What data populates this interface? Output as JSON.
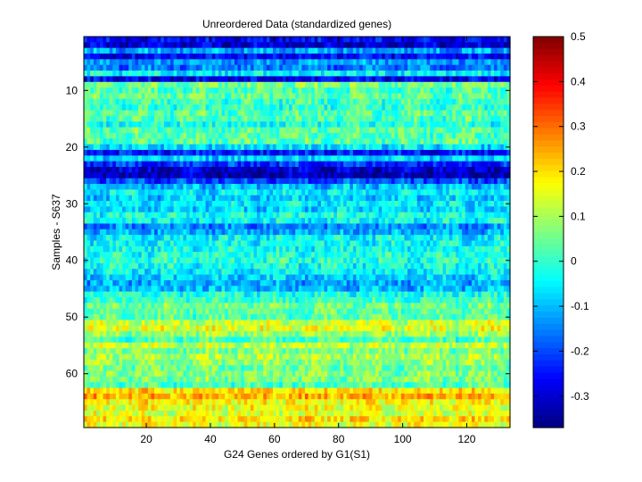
{
  "chart_data": {
    "type": "heatmap",
    "title": "Unreordered Data (standardized genes)",
    "xlabel": "G24 Genes ordered by G1(S1)",
    "ylabel": "Samples - S637",
    "n_cols": 133,
    "n_rows": 69,
    "x_ticks": [
      20,
      40,
      60,
      80,
      100,
      120
    ],
    "y_ticks": [
      10,
      20,
      30,
      40,
      50,
      60
    ],
    "colorbar": {
      "colormap": "jet",
      "min": -0.37,
      "max": 0.5,
      "ticks": [
        0.5,
        0.4,
        0.3,
        0.2,
        0.1,
        0,
        -0.1,
        -0.2,
        -0.3
      ],
      "tick_labels": [
        "0.5",
        "0.4",
        "0.3",
        "0.2",
        "0.1",
        "0",
        "-0.1",
        "-0.2",
        "-0.3"
      ]
    },
    "row_mean_profile": [
      -0.27,
      -0.3,
      -0.12,
      -0.26,
      -0.14,
      -0.16,
      -0.05,
      -0.28,
      0.06,
      0.02,
      0.04,
      0.01,
      0.0,
      0.03,
      0.02,
      -0.02,
      0.03,
      0.02,
      0.03,
      -0.07,
      -0.24,
      -0.08,
      -0.22,
      -0.3,
      -0.32,
      -0.2,
      -0.1,
      -0.05,
      -0.09,
      -0.06,
      -0.08,
      -0.03,
      -0.04,
      -0.15,
      -0.12,
      -0.05,
      -0.04,
      -0.03,
      -0.02,
      -0.01,
      -0.03,
      -0.05,
      -0.08,
      -0.12,
      -0.1,
      -0.02,
      0.0,
      0.05,
      0.04,
      0.03,
      0.13,
      0.15,
      0.08,
      0.02,
      0.12,
      0.06,
      0.1,
      0.08,
      0.05,
      0.07,
      0.06,
      0.02,
      0.2,
      0.24,
      0.18,
      0.16,
      0.14,
      0.2,
      0.16
    ],
    "noise_amplitude": 0.07,
    "grid": false
  }
}
